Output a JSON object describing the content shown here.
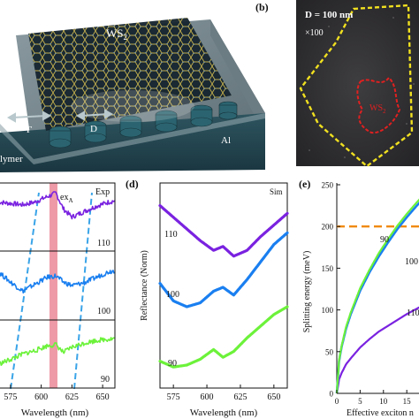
{
  "panel_a": {
    "material_label": "WS",
    "material_sub": "2",
    "period_label": "Γ",
    "diameter_label": "D",
    "substrate_label": "Al",
    "polymer_label": "lymer"
  },
  "panel_b": {
    "letter": "(b)",
    "diameter_text": "D = 100 nm",
    "magnification_text": "×100",
    "flake_label": "WS",
    "flake_sub": "2"
  },
  "panel_c": {
    "exciton_label": "ex",
    "exciton_sub": "A",
    "exp_label": "Exp",
    "xlabel": "Wavelength (nm)",
    "xticks": [
      "575",
      "600",
      "625",
      "650"
    ],
    "curve_labels": [
      "110",
      "100",
      "90"
    ]
  },
  "panel_d": {
    "letter": "(d)",
    "sim_label": "Sim",
    "ylabel": "Reflectance (Norm)",
    "xlabel": "Wavelength (nm)",
    "xticks": [
      "575",
      "600",
      "625",
      "650"
    ],
    "curve_labels": [
      "110",
      "100",
      "90"
    ]
  },
  "panel_e": {
    "letter": "(e)",
    "ylabel": "Splitting energy (meV)",
    "xlabel": "Effective exciton n",
    "yticks": [
      "0",
      "50",
      "100",
      "150",
      "200",
      "250"
    ],
    "xticks": [
      "0",
      "5",
      "10",
      "15"
    ],
    "curve_labels": [
      "90",
      "100",
      "110"
    ]
  },
  "colors": {
    "d90": "#6cf23a",
    "d100": "#1a7ff0",
    "d110": "#7a22e0",
    "threshold": "#f08a10",
    "exciton_band": "#e87a8a",
    "guide_lines": "#3aa4e8",
    "flake_outline": "#f0e020",
    "ws2_outline": "#e02020"
  },
  "chart_data": [
    {
      "type": "line",
      "panel": "c",
      "xlabel": "Wavelength (nm)",
      "xlim": [
        565,
        660
      ],
      "exciton_nm": 612,
      "series": [
        {
          "name": "110",
          "x": [
            565,
            575,
            585,
            595,
            605,
            612,
            618,
            625,
            635,
            645,
            655,
            660
          ],
          "y": [
            0.72,
            0.7,
            0.68,
            0.72,
            0.8,
            0.85,
            0.62,
            0.5,
            0.58,
            0.66,
            0.72,
            0.74
          ]
        },
        {
          "name": "100",
          "x": [
            565,
            575,
            585,
            595,
            605,
            612,
            618,
            625,
            635,
            645,
            655,
            660
          ],
          "y": [
            0.7,
            0.55,
            0.42,
            0.52,
            0.62,
            0.64,
            0.55,
            0.5,
            0.54,
            0.62,
            0.7,
            0.72
          ]
        },
        {
          "name": "90",
          "x": [
            565,
            575,
            585,
            595,
            605,
            612,
            618,
            625,
            635,
            645,
            655,
            660
          ],
          "y": [
            0.35,
            0.42,
            0.5,
            0.55,
            0.62,
            0.64,
            0.52,
            0.6,
            0.66,
            0.7,
            0.72,
            0.73
          ]
        }
      ]
    },
    {
      "type": "line",
      "panel": "d",
      "xlabel": "Wavelength (nm)",
      "ylabel": "Reflectance (Norm)",
      "xlim": [
        565,
        660
      ],
      "series": [
        {
          "name": "110",
          "x": [
            565,
            575,
            585,
            595,
            605,
            612,
            620,
            630,
            640,
            650,
            660
          ],
          "y": [
            0.92,
            0.86,
            0.8,
            0.74,
            0.69,
            0.71,
            0.66,
            0.69,
            0.76,
            0.82,
            0.88
          ]
        },
        {
          "name": "100",
          "x": [
            565,
            575,
            585,
            595,
            605,
            612,
            620,
            630,
            640,
            650,
            660
          ],
          "y": [
            0.52,
            0.43,
            0.4,
            0.42,
            0.48,
            0.5,
            0.46,
            0.54,
            0.63,
            0.72,
            0.78
          ]
        },
        {
          "name": "90",
          "x": [
            565,
            575,
            585,
            595,
            605,
            612,
            620,
            630,
            640,
            650,
            660
          ],
          "y": [
            0.12,
            0.09,
            0.1,
            0.13,
            0.18,
            0.14,
            0.17,
            0.24,
            0.3,
            0.36,
            0.4
          ]
        }
      ]
    },
    {
      "type": "line",
      "panel": "e",
      "xlabel": "Effective exciton n",
      "ylabel": "Splitting energy (meV)",
      "xlim": [
        0,
        18
      ],
      "ylim": [
        0,
        250
      ],
      "threshold_y": 200,
      "series": [
        {
          "name": "90",
          "x": [
            0,
            0.5,
            1,
            2,
            3,
            5,
            7,
            9,
            11,
            13,
            15,
            17,
            18
          ],
          "y": [
            0,
            40,
            56,
            80,
            97,
            126,
            148,
            168,
            185,
            201,
            215,
            228,
            234
          ]
        },
        {
          "name": "100",
          "x": [
            0,
            0.5,
            1,
            2,
            3,
            5,
            7,
            9,
            11,
            13,
            15,
            17,
            18
          ],
          "y": [
            0,
            39,
            55,
            78,
            95,
            123,
            145,
            164,
            181,
            197,
            211,
            224,
            230
          ]
        },
        {
          "name": "110",
          "x": [
            0,
            0.5,
            1,
            2,
            3,
            5,
            7,
            9,
            11,
            13,
            15,
            17,
            18
          ],
          "y": [
            0,
            17,
            24,
            35,
            42,
            55,
            65,
            74,
            81,
            88,
            95,
            101,
            104
          ]
        }
      ]
    }
  ]
}
